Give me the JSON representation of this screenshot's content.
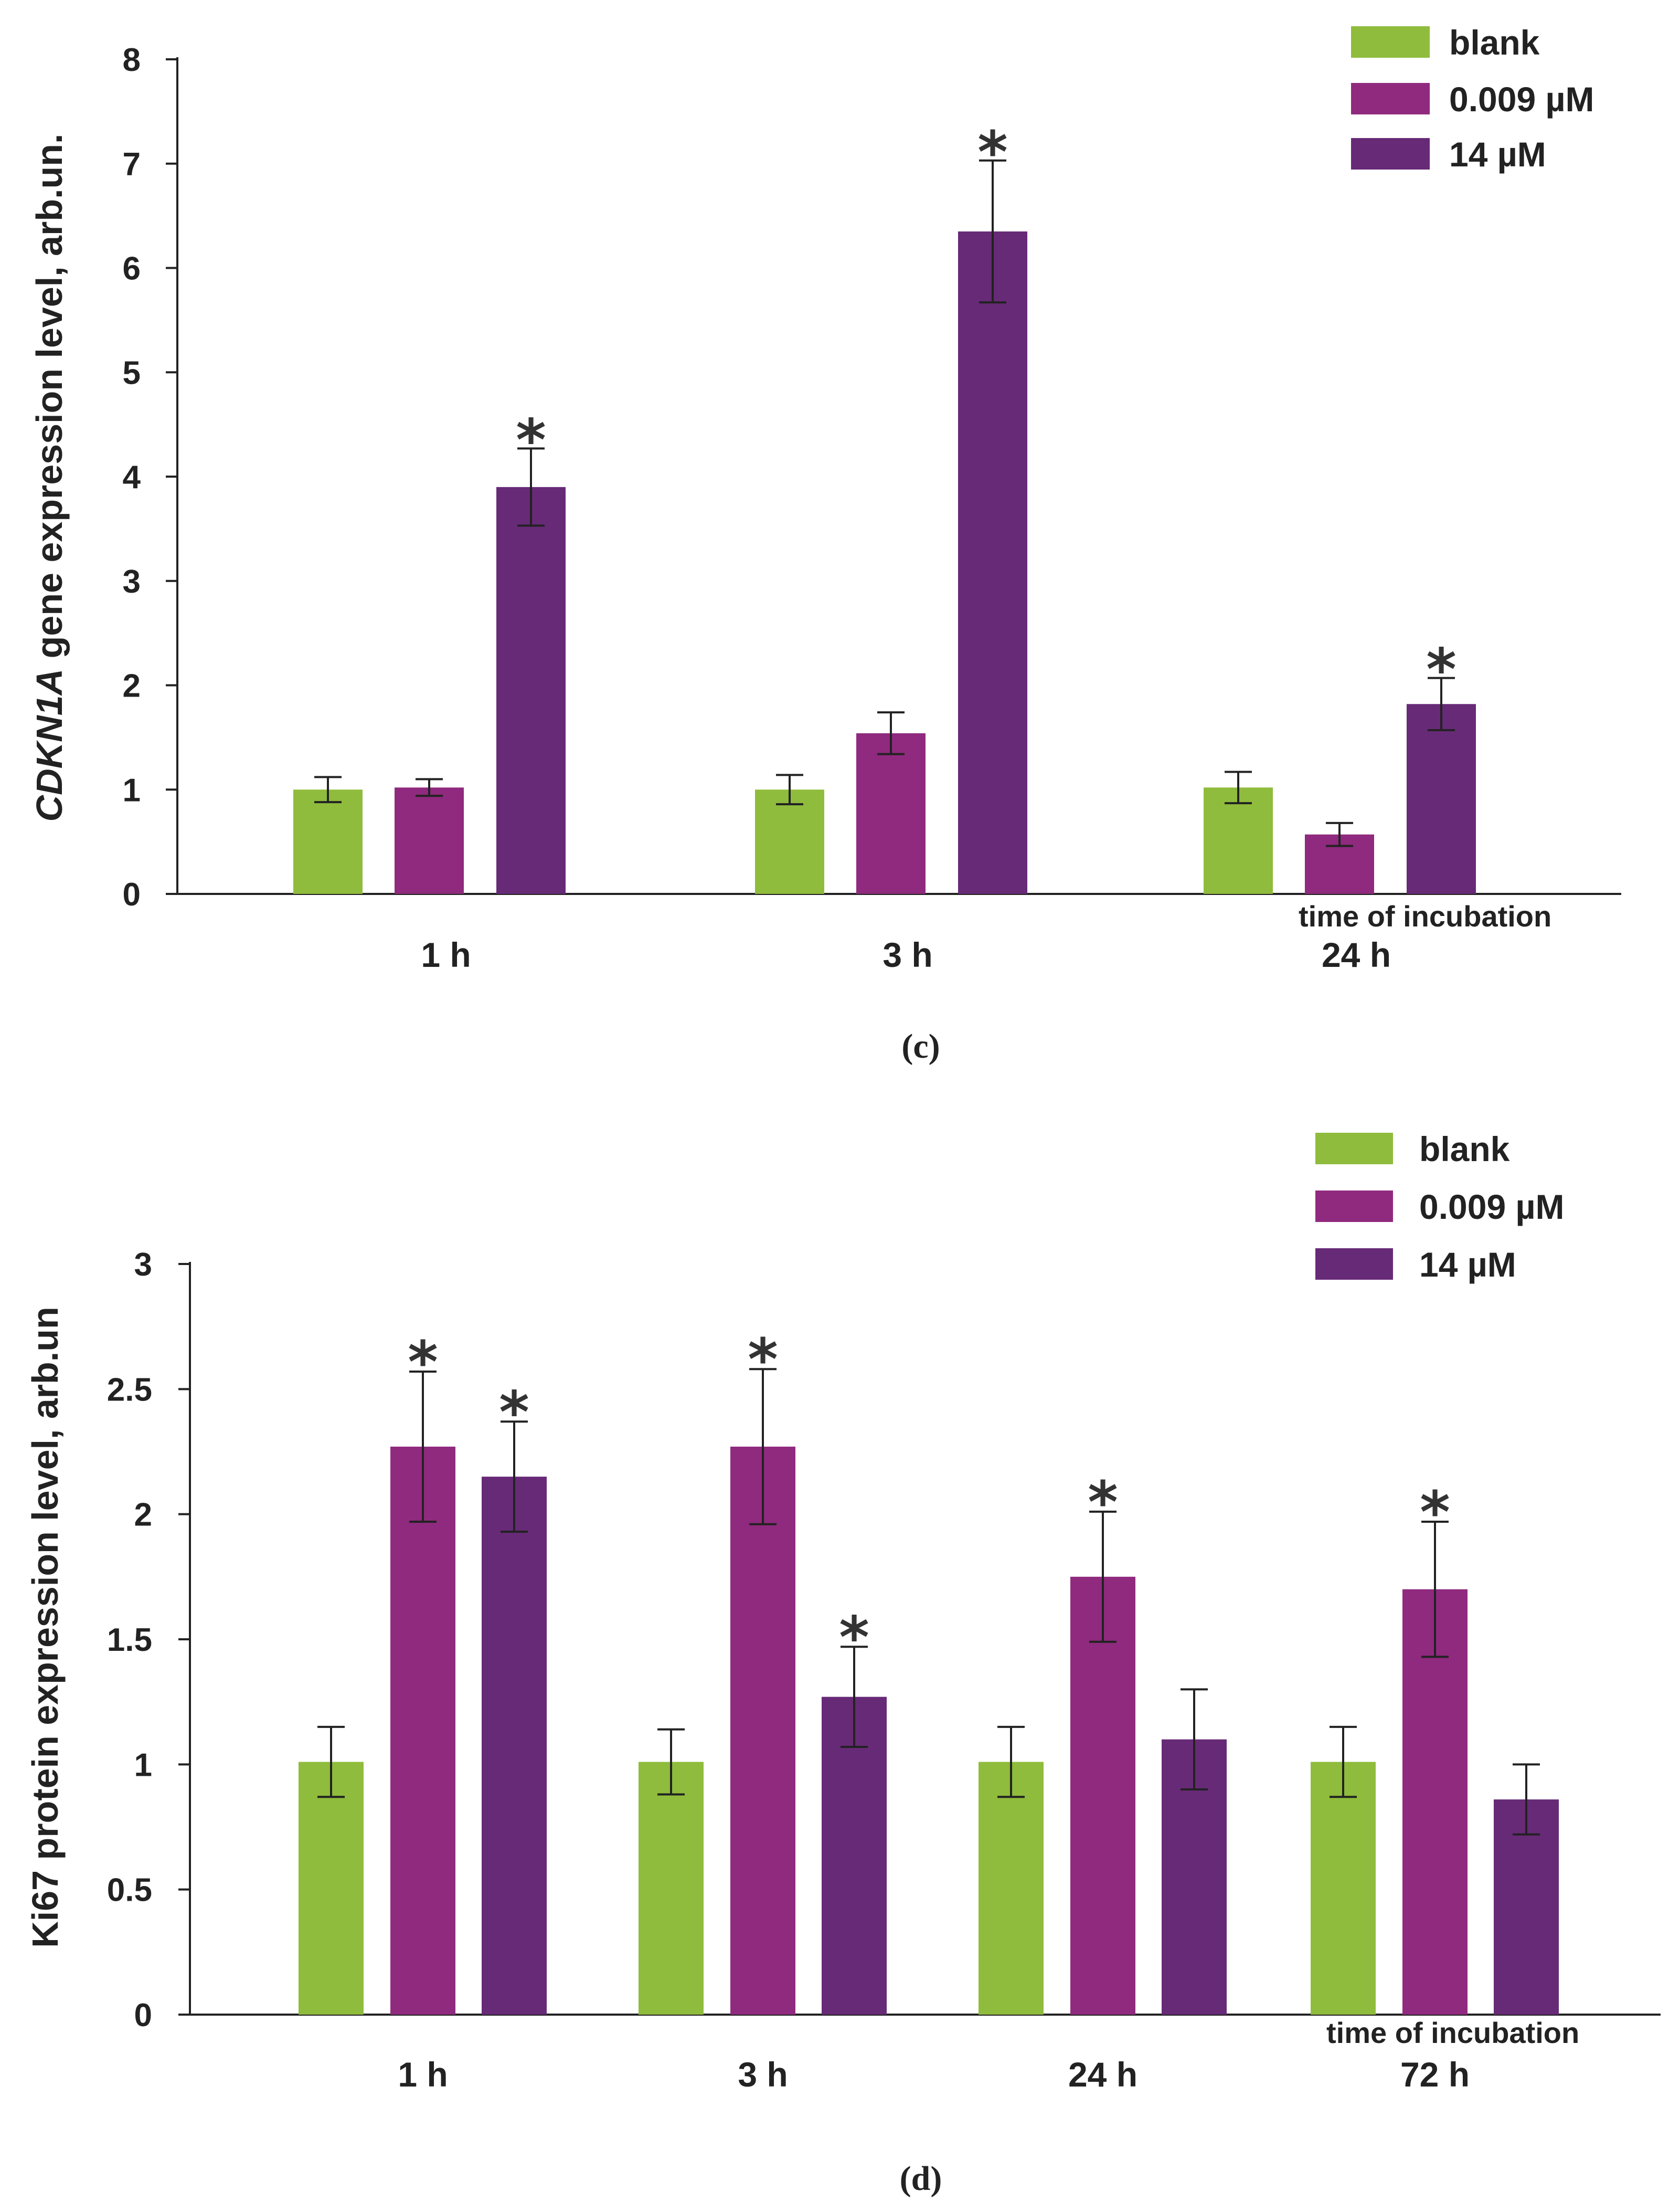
{
  "colors": {
    "blank": "#8fbc3c",
    "low": "#902a7e",
    "high": "#672a77",
    "axis": "#222222",
    "error": "#222222"
  },
  "chart_data": [
    {
      "type": "bar",
      "panel_label": "(c)",
      "ylabel_italic": "CDKN1A",
      "ylabel_rest": " gene expression level, arb.un.",
      "xlabel": "time of incubation",
      "ylim": [
        0,
        8
      ],
      "yticks": [
        "0",
        "1",
        "2",
        "3",
        "4",
        "5",
        "6",
        "7",
        "8"
      ],
      "legend": [
        "blank",
        "0.009 µM",
        "14 µM"
      ],
      "legend_position": "top-right",
      "categories": [
        "1 h",
        "3 h",
        "24 h"
      ],
      "series": [
        {
          "name": "blank",
          "values": [
            1.0,
            1.0,
            1.02
          ],
          "errors": [
            0.12,
            0.14,
            0.15
          ],
          "significant": [
            false,
            false,
            false
          ]
        },
        {
          "name": "0.009 µM",
          "values": [
            1.02,
            1.54,
            0.57
          ],
          "errors": [
            0.08,
            0.2,
            0.11
          ],
          "significant": [
            false,
            false,
            false
          ]
        },
        {
          "name": "14 µM",
          "values": [
            3.9,
            6.35,
            1.82
          ],
          "errors": [
            0.37,
            0.68,
            0.25
          ],
          "significant": [
            true,
            true,
            true
          ]
        }
      ]
    },
    {
      "type": "bar",
      "panel_label": "(d)",
      "ylabel_italic": "",
      "ylabel_rest": "Ki67 protein expression level, arb.un",
      "xlabel": "time of incubation",
      "ylim": [
        0,
        3
      ],
      "yticks": [
        "0",
        "0.5",
        "1",
        "1.5",
        "2",
        "2.5",
        "3"
      ],
      "legend": [
        "blank",
        "0.009 µM",
        "14 µM"
      ],
      "legend_position": "top-right",
      "categories": [
        "1 h",
        "3 h",
        "24 h",
        "72 h"
      ],
      "series": [
        {
          "name": "blank",
          "values": [
            1.01,
            1.01,
            1.01,
            1.01
          ],
          "errors": [
            0.14,
            0.13,
            0.14,
            0.14
          ],
          "significant": [
            false,
            false,
            false,
            false
          ]
        },
        {
          "name": "0.009 µM",
          "values": [
            2.27,
            2.27,
            1.75,
            1.7
          ],
          "errors": [
            0.3,
            0.31,
            0.26,
            0.27
          ],
          "significant": [
            true,
            true,
            true,
            true
          ]
        },
        {
          "name": "14 µM",
          "values": [
            2.15,
            1.27,
            1.1,
            0.86
          ],
          "errors": [
            0.22,
            0.2,
            0.2,
            0.14
          ],
          "significant": [
            true,
            true,
            false,
            false
          ]
        }
      ]
    }
  ],
  "significance_marker": "*"
}
